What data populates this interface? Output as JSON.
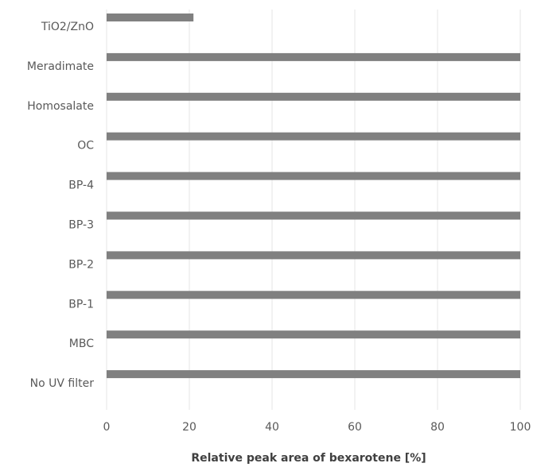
{
  "chart_data": {
    "type": "bar",
    "orientation": "horizontal",
    "categories": [
      "TiO2/ZnO",
      "Meradimate",
      "Homosalate",
      "OC",
      "BP-4",
      "BP-3",
      "BP-2",
      "BP-1",
      "MBC",
      "No UV filter"
    ],
    "values": [
      21,
      100,
      100,
      100,
      100,
      100,
      100,
      100,
      100,
      100
    ],
    "xlabel": "Relative peak area of bexarotene [%]",
    "ylabel": "",
    "xlim": [
      0,
      100
    ],
    "xticks": [
      "0",
      "20",
      "40",
      "60",
      "80",
      "100"
    ],
    "grid": "vertical",
    "legend": "none",
    "bar_color": "#808080"
  }
}
